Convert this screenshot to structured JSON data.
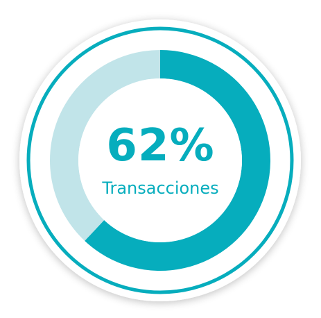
{
  "chart_data": {
    "type": "pie",
    "variant": "donut",
    "categories": [
      "Transacciones",
      ""
    ],
    "values": [
      62,
      38
    ],
    "value_label": "62%",
    "caption": "Transacciones",
    "colors": {
      "filled": "#06adbd",
      "remaining": "#c1e4e9",
      "outer_ring": "#06adbd",
      "background": "#ffffff"
    },
    "start": "top",
    "direction": "clockwise"
  }
}
